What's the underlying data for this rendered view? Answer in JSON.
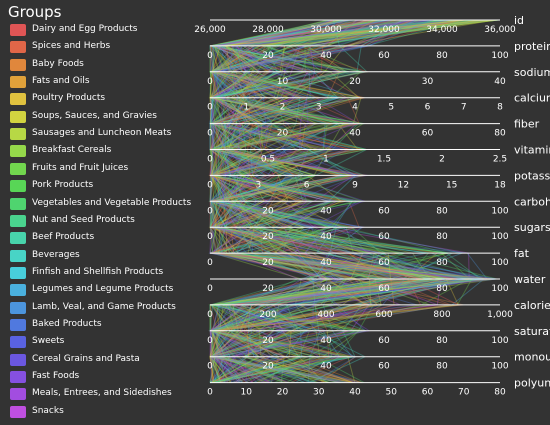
{
  "legend": {
    "title": "Groups",
    "groups": [
      {
        "label": "Dairy and Egg Products",
        "color": "#e05555"
      },
      {
        "label": "Spices and Herbs",
        "color": "#e06648"
      },
      {
        "label": "Baby Foods",
        "color": "#e0873c"
      },
      {
        "label": "Fats and Oils",
        "color": "#e0a13a"
      },
      {
        "label": "Poultry Products",
        "color": "#e0c23f"
      },
      {
        "label": "Soups, Sauces, and Gravies",
        "color": "#d2d440"
      },
      {
        "label": "Sausages and Luncheon Meats",
        "color": "#b7d845"
      },
      {
        "label": "Breakfast Cereals",
        "color": "#95d84a"
      },
      {
        "label": "Fruits and Fruit Juices",
        "color": "#72d64e"
      },
      {
        "label": "Pork Products",
        "color": "#58d656"
      },
      {
        "label": "Vegetables and Vegetable Products",
        "color": "#4fd46f"
      },
      {
        "label": "Nut and Seed Products",
        "color": "#4ad48e"
      },
      {
        "label": "Beef Products",
        "color": "#48d4ab"
      },
      {
        "label": "Beverages",
        "color": "#48d4c6"
      },
      {
        "label": "Finfish and Shellfish Products",
        "color": "#48cedb"
      },
      {
        "label": "Legumes and Legume Products",
        "color": "#4ab0dd"
      },
      {
        "label": "Lamb, Veal, and Game Products",
        "color": "#4c95dd"
      },
      {
        "label": "Baked Products",
        "color": "#5079df"
      },
      {
        "label": "Sweets",
        "color": "#5962e0"
      },
      {
        "label": "Cereal Grains and Pasta",
        "color": "#6b57e0"
      },
      {
        "label": "Fast Foods",
        "color": "#8550e0"
      },
      {
        "label": "Meals, Entrees, and Sidedishes",
        "color": "#a24de0"
      },
      {
        "label": "Snacks",
        "color": "#bf4fe0"
      }
    ]
  },
  "chart_data": {
    "type": "parallel_coordinates",
    "axes": [
      {
        "name": "id",
        "ticks": [
          "26,000",
          "28,000",
          "30,000",
          "32,000",
          "34,000",
          "36,000"
        ],
        "range": [
          26000,
          36000
        ]
      },
      {
        "name": "protein",
        "ticks": [
          "0",
          "20",
          "40",
          "60",
          "80",
          "100"
        ],
        "range": [
          0,
          100
        ]
      },
      {
        "name": "sodium",
        "ticks": [
          "0",
          "10",
          "20",
          "30",
          "40"
        ],
        "range": [
          0,
          40
        ]
      },
      {
        "name": "calcium",
        "ticks": [
          "0",
          "1",
          "2",
          "3",
          "4",
          "5",
          "6",
          "7",
          "8"
        ],
        "range": [
          0,
          8
        ]
      },
      {
        "name": "fiber",
        "ticks": [
          "0",
          "20",
          "40",
          "60",
          "80"
        ],
        "range": [
          0,
          80
        ]
      },
      {
        "name": "vitamin",
        "ticks": [
          "0",
          "0.5",
          "1",
          "1.5",
          "2",
          "2.5"
        ],
        "range": [
          0,
          2.5
        ]
      },
      {
        "name": "potassium",
        "ticks": [
          "0",
          "3",
          "6",
          "9",
          "12",
          "15",
          "18"
        ],
        "range": [
          0,
          18
        ]
      },
      {
        "name": "carbohydrate",
        "ticks": [
          "0",
          "20",
          "40",
          "60",
          "80",
          "100"
        ],
        "range": [
          0,
          100
        ]
      },
      {
        "name": "sugars",
        "ticks": [
          "0",
          "20",
          "40",
          "60",
          "80",
          "100"
        ],
        "range": [
          0,
          100
        ]
      },
      {
        "name": "fat",
        "ticks": [
          "0",
          "20",
          "40",
          "60",
          "80",
          "100"
        ],
        "range": [
          0,
          100
        ]
      },
      {
        "name": "water",
        "ticks": [
          "0",
          "20",
          "40",
          "60",
          "80",
          "100"
        ],
        "range": [
          0,
          100
        ]
      },
      {
        "name": "calories",
        "ticks": [
          "0",
          "200",
          "400",
          "600",
          "800",
          "1,000"
        ],
        "range": [
          0,
          1000
        ]
      },
      {
        "name": "saturated",
        "ticks": [
          "0",
          "20",
          "40",
          "60",
          "80",
          "100"
        ],
        "range": [
          0,
          100
        ]
      },
      {
        "name": "monounsat",
        "ticks": [
          "0",
          "20",
          "40",
          "60",
          "80",
          "100"
        ],
        "range": [
          0,
          100
        ]
      },
      {
        "name": "polyunsat",
        "ticks": [
          "0",
          "10",
          "20",
          "30",
          "40",
          "50",
          "60",
          "70",
          "80"
        ],
        "range": [
          0,
          80
        ]
      }
    ]
  }
}
